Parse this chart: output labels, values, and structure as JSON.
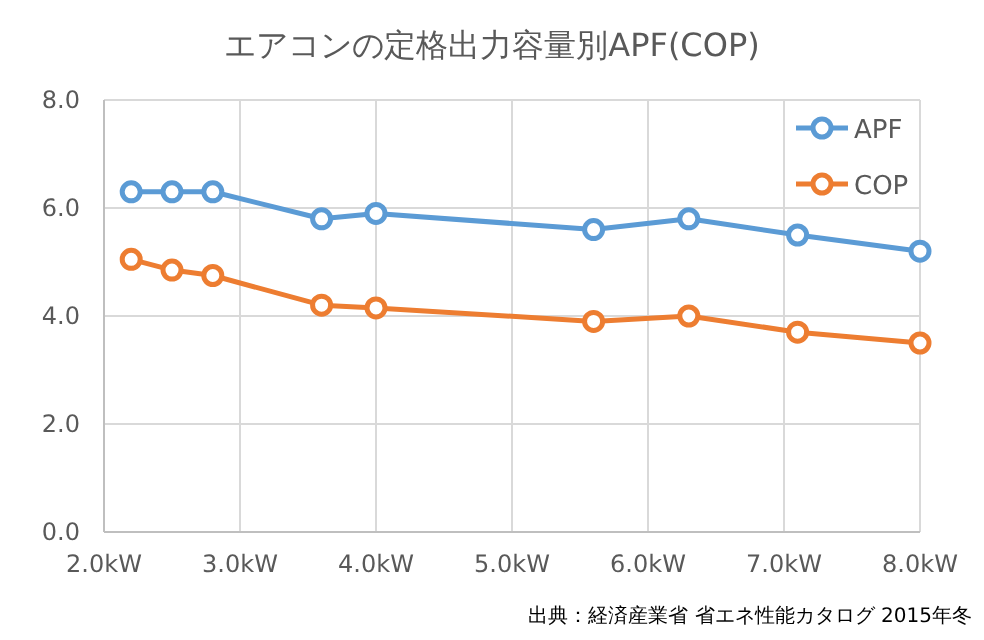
{
  "chart_data": {
    "type": "line",
    "title": "エアコンの定格出力容量別APF(COP)",
    "x": [
      2.2,
      2.5,
      2.8,
      3.6,
      4.0,
      5.6,
      6.3,
      7.1,
      8.0
    ],
    "series": [
      {
        "name": "APF",
        "color": "#5b9bd5",
        "values": [
          6.3,
          6.3,
          6.3,
          5.8,
          5.9,
          5.6,
          5.8,
          5.5,
          5.2
        ]
      },
      {
        "name": "COP",
        "color": "#ed7d31",
        "values": [
          5.05,
          4.85,
          4.75,
          4.2,
          4.15,
          3.9,
          4.0,
          3.7,
          3.5
        ]
      }
    ],
    "xlim": [
      2,
      8
    ],
    "xticks": [
      {
        "value": 2,
        "label": "2.0kW"
      },
      {
        "value": 3,
        "label": "3.0kW"
      },
      {
        "value": 4,
        "label": "4.0kW"
      },
      {
        "value": 5,
        "label": "5.0kW"
      },
      {
        "value": 6,
        "label": "6.0kW"
      },
      {
        "value": 7,
        "label": "7.0kW"
      },
      {
        "value": 8,
        "label": "8.0kW"
      }
    ],
    "ylim": [
      0,
      8
    ],
    "yticks": [
      {
        "value": 0,
        "label": "0.0"
      },
      {
        "value": 2,
        "label": "2.0"
      },
      {
        "value": 4,
        "label": "4.0"
      },
      {
        "value": 6,
        "label": "6.0"
      },
      {
        "value": 8,
        "label": "8.0"
      }
    ],
    "grid": true,
    "legend": "top right",
    "marker": "circle",
    "line_style": "solid",
    "annotations": [
      "出典：経済産業省 省エネ性能カタログ 2015年冬"
    ]
  }
}
